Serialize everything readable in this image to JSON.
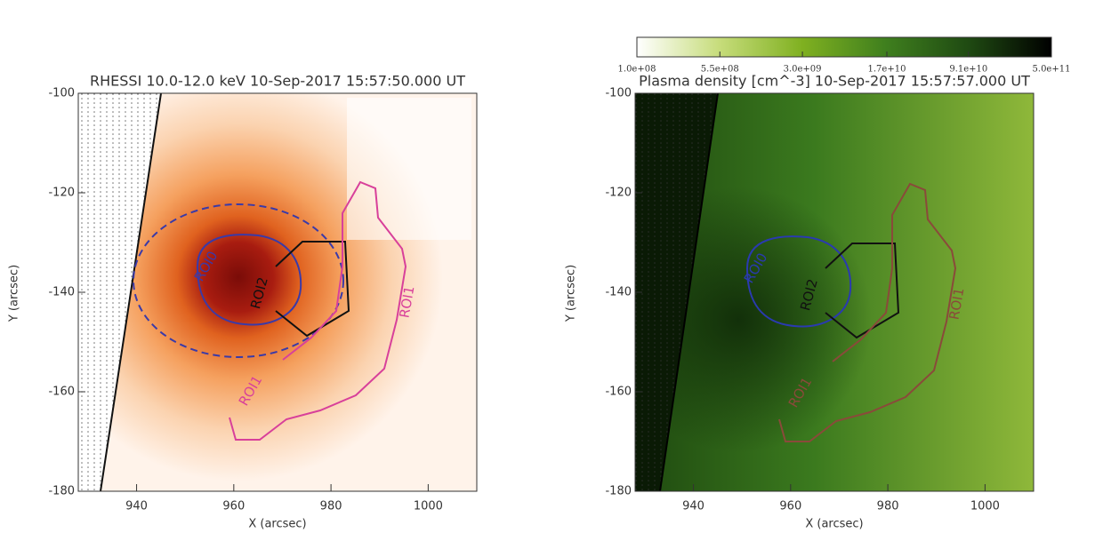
{
  "chart_data": [
    {
      "type": "image",
      "title": "RHESSI 10.0-12.0 keV 10-Sep-2017 15:57:50.000 UT",
      "x_label": "X (arcsec)",
      "y_label": "Y (arcsec)",
      "xlim": [
        928,
        1010
      ],
      "ylim": [
        -180,
        -100
      ],
      "xticks": [
        940,
        960,
        980,
        1000
      ],
      "yticks": [
        -100,
        -120,
        -140,
        -160,
        -180
      ],
      "annotations": [
        "ROI0",
        "ROI2",
        "ROI1",
        "ROI1"
      ]
    },
    {
      "type": "image",
      "title": "Plasma density [cm^-3] 10-Sep-2017 15:57:57.000 UT",
      "x_label": "X (arcsec)",
      "y_label": "Y (arcsec)",
      "xlim": [
        928,
        1010
      ],
      "ylim": [
        -180,
        -100
      ],
      "xticks": [
        940,
        960,
        980,
        1000
      ],
      "yticks": [
        -100,
        -120,
        -140,
        -160,
        -180
      ],
      "annotations": [
        "ROI0",
        "ROI2",
        "ROI1",
        "ROI1"
      ],
      "colorbar": {
        "log_scale": true,
        "lim": [
          100000000,
          500000000000
        ],
        "ticks": [
          {
            "value": 100000000,
            "label": "1.0e+08"
          },
          {
            "value": 550000000,
            "label": "5.5e+08"
          },
          {
            "value": 3000000000,
            "label": "3.0e+09"
          },
          {
            "value": 17000000000,
            "label": "1.7e+10"
          },
          {
            "value": 91000000000,
            "label": "9.1e+10"
          },
          {
            "value": 500000000000,
            "label": "5.0e+11"
          }
        ]
      }
    }
  ]
}
